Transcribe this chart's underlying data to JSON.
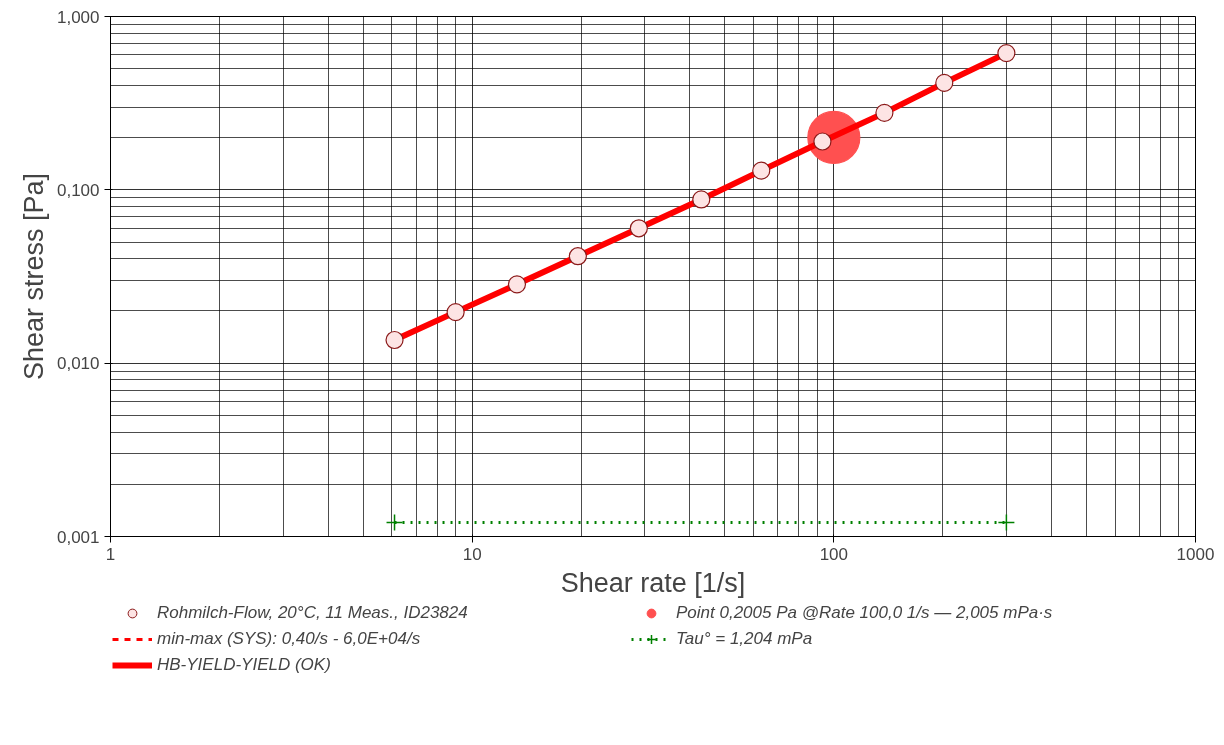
{
  "chart_data": {
    "type": "scatter",
    "xlabel": "Shear rate [1/s]",
    "ylabel": "Shear stress [Pa]",
    "log": "xy",
    "grid": true,
    "legend": "bottom",
    "xlim": [
      1,
      1000
    ],
    "xticks": [
      1,
      10,
      100,
      1000
    ],
    "ylim": [
      0.001,
      1
    ],
    "yticks": [
      {
        "value": 0.001,
        "label": "0,001"
      },
      {
        "value": 0.01,
        "label": "0,010"
      },
      {
        "value": 0.1,
        "label": "0,100"
      },
      {
        "value": 1,
        "label": "1,000"
      }
    ],
    "series": [
      {
        "name": "Rohmilch-Flow, 20°C, 11 Meas., ID23824",
        "marker": "circle",
        "color": "#fde4e4",
        "x": [
          6.1,
          9.0,
          13.3,
          19.6,
          28.9,
          43,
          63,
          93,
          138,
          202,
          300
        ],
        "values": [
          0.0136,
          0.0197,
          0.0285,
          0.0414,
          0.06,
          0.088,
          0.129,
          0.19,
          0.278,
          0.414,
          0.615
        ]
      },
      {
        "name": "min-max (SYS): 0,40/s - 6,0E+04/s",
        "type": "line",
        "line_style": "dashed",
        "color": "#ff0000"
      },
      {
        "name": "HB-YIELD-YIELD (OK)",
        "type": "line",
        "line_style": "solid",
        "color": "#ff0000",
        "x": [
          6.1,
          9.0,
          13.3,
          19.6,
          28.9,
          43,
          63,
          93,
          138,
          202,
          300
        ],
        "values": [
          0.0136,
          0.0197,
          0.0285,
          0.0414,
          0.06,
          0.088,
          0.129,
          0.19,
          0.278,
          0.414,
          0.615
        ]
      },
      {
        "name": "Point 0,2005 Pa @Rate 100,0 1/s — 2,005 mPa·s",
        "marker": "circle",
        "color": "#ff5050",
        "x": [
          100
        ],
        "values": [
          0.2005
        ]
      },
      {
        "name": "Tau° = 1,204 mPa",
        "type": "line",
        "line_style": "dotted",
        "marker": "cross",
        "color": "#008000",
        "x": [
          6.1,
          300
        ],
        "values": [
          0.001204,
          0.001204
        ]
      }
    ]
  }
}
